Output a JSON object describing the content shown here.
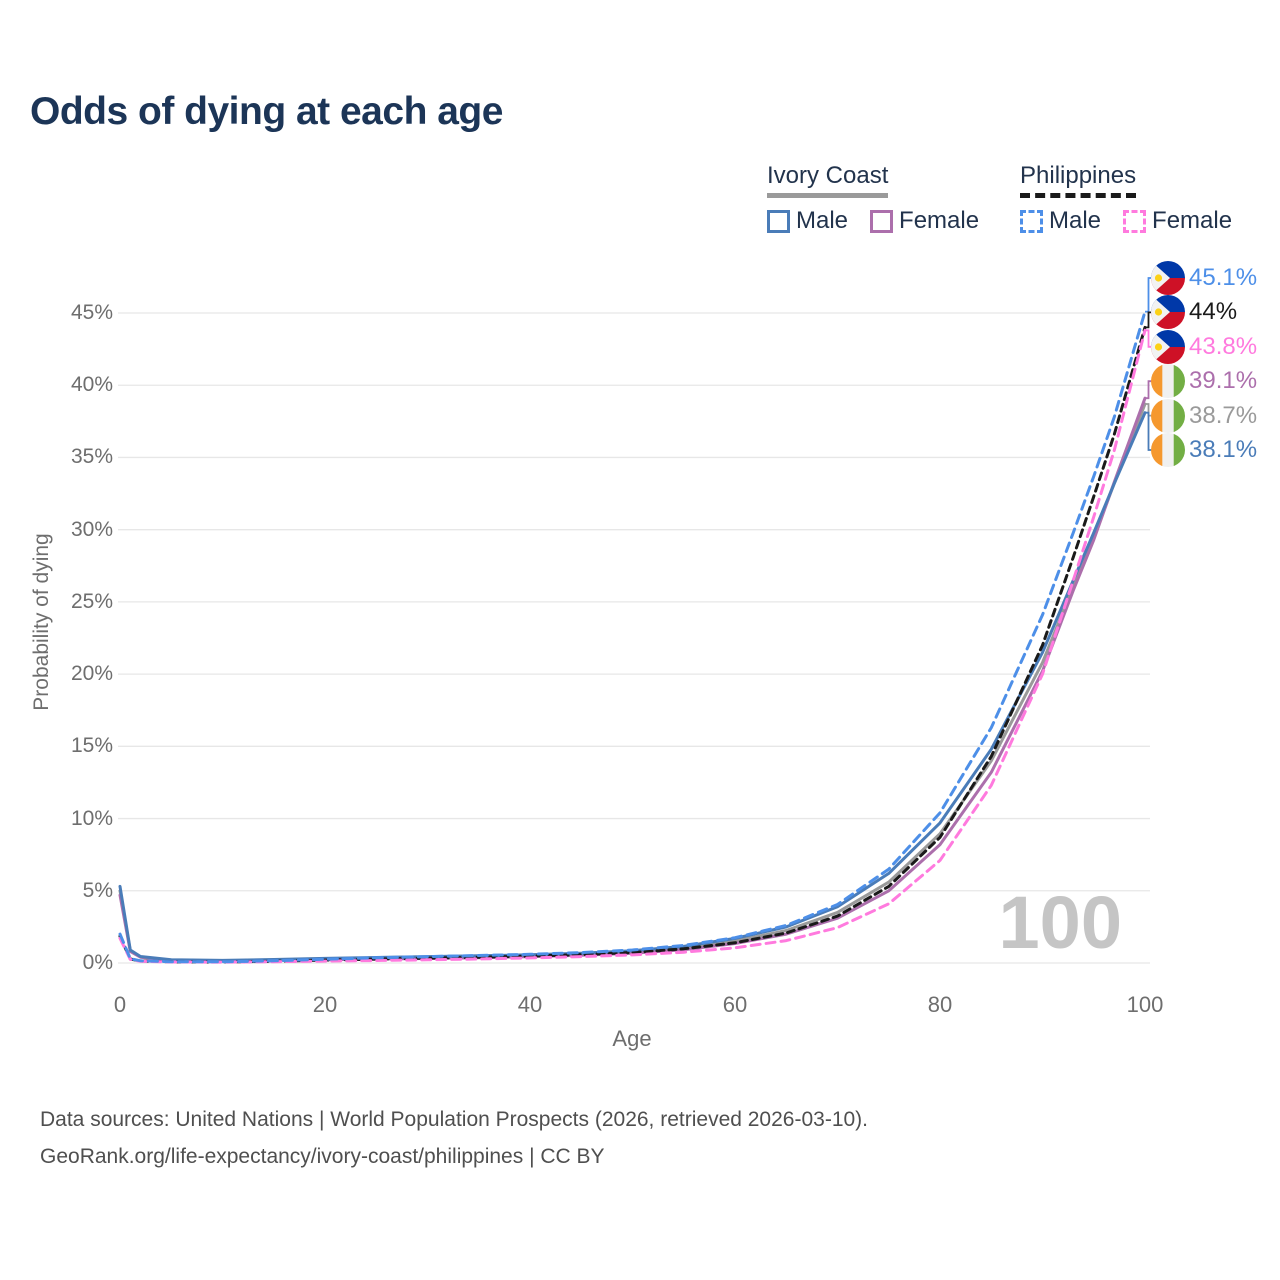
{
  "title": "Odds of dying at each age",
  "watermark": "100",
  "legend": {
    "groups": [
      {
        "name": "Ivory Coast",
        "line_style": "solid",
        "underline_color": "#9A9A9A",
        "items": [
          {
            "label": "Male",
            "color": "#4A7CB8"
          },
          {
            "label": "Female",
            "color": "#AC6FAC"
          }
        ]
      },
      {
        "name": "Philippines",
        "line_style": "dashed",
        "underline_color": "#1A1A1A",
        "items": [
          {
            "label": "Male",
            "color": "#4D8FE8"
          },
          {
            "label": "Female",
            "color": "#FF7ADE"
          }
        ]
      }
    ]
  },
  "chart_data": {
    "type": "line",
    "title": "Odds of dying at each age",
    "xlabel": "Age",
    "ylabel": "Probability of dying",
    "xlim": [
      0,
      100
    ],
    "ylim": [
      0,
      47
    ],
    "grid": "horizontal",
    "x_ticks": [
      {
        "value": 0,
        "label": "0"
      },
      {
        "value": 20,
        "label": "20"
      },
      {
        "value": 40,
        "label": "40"
      },
      {
        "value": 60,
        "label": "60"
      },
      {
        "value": 80,
        "label": "80"
      },
      {
        "value": 100,
        "label": "100"
      }
    ],
    "y_ticks": [
      {
        "value": 0,
        "label": "0%"
      },
      {
        "value": 5,
        "label": "5%"
      },
      {
        "value": 10,
        "label": "10%"
      },
      {
        "value": 15,
        "label": "15%"
      },
      {
        "value": 20,
        "label": "20%"
      },
      {
        "value": 25,
        "label": "25%"
      },
      {
        "value": 30,
        "label": "30%"
      },
      {
        "value": 35,
        "label": "35%"
      },
      {
        "value": 40,
        "label": "40%"
      },
      {
        "value": 45,
        "label": "45%"
      }
    ],
    "x": [
      0,
      1,
      2,
      5,
      10,
      15,
      20,
      25,
      30,
      35,
      40,
      45,
      50,
      55,
      60,
      65,
      70,
      75,
      80,
      85,
      90,
      93,
      95,
      97,
      100
    ],
    "series": [
      {
        "name": "Philippines Male",
        "country": "Philippines",
        "sex": "Male",
        "color": "#4D8FE8",
        "dash": "9 6",
        "flag": "ph",
        "end_label": "45.1%",
        "values": [
          2.0,
          0.3,
          0.15,
          0.09,
          0.08,
          0.15,
          0.26,
          0.36,
          0.44,
          0.52,
          0.6,
          0.72,
          0.9,
          1.22,
          1.75,
          2.6,
          4.05,
          6.5,
          10.4,
          16.3,
          24.1,
          29.8,
          33.7,
          37.8,
          45.1
        ]
      },
      {
        "name": "Philippines Both sexes",
        "country": "Philippines",
        "sex": "Both",
        "color": "#1A1A1A",
        "dash": "7 5",
        "flag": "ph",
        "end_label": "44%",
        "values": [
          1.85,
          0.28,
          0.14,
          0.08,
          0.07,
          0.12,
          0.2,
          0.27,
          0.33,
          0.4,
          0.48,
          0.58,
          0.73,
          0.98,
          1.4,
          2.08,
          3.25,
          5.3,
          8.7,
          14.3,
          22.0,
          28.1,
          32.3,
          36.6,
          44.0
        ]
      },
      {
        "name": "Philippines Female",
        "country": "Philippines",
        "sex": "Female",
        "color": "#FF7ADE",
        "dash": "9 6",
        "flag": "ph",
        "end_label": "43.8%",
        "values": [
          1.7,
          0.25,
          0.12,
          0.07,
          0.06,
          0.09,
          0.13,
          0.17,
          0.22,
          0.28,
          0.35,
          0.44,
          0.56,
          0.75,
          1.05,
          1.55,
          2.45,
          4.1,
          7.1,
          12.3,
          20.0,
          26.5,
          30.9,
          35.5,
          43.8
        ]
      },
      {
        "name": "Ivory Coast Female",
        "country": "Ivory Coast",
        "sex": "Female",
        "color": "#AC6FAC",
        "dash": null,
        "flag": "ci",
        "end_label": "39.1%",
        "values": [
          4.7,
          0.8,
          0.4,
          0.19,
          0.15,
          0.18,
          0.23,
          0.27,
          0.31,
          0.37,
          0.44,
          0.53,
          0.67,
          0.92,
          1.35,
          2.0,
          3.1,
          5.0,
          8.2,
          13.2,
          20.2,
          25.8,
          29.3,
          33.3,
          39.1
        ]
      },
      {
        "name": "Ivory Coast Both sexes",
        "country": "Ivory Coast",
        "sex": "Both",
        "color": "#9A9A9A",
        "dash": null,
        "flag": "ci",
        "end_label": "38.7%",
        "values": [
          5.0,
          0.85,
          0.42,
          0.2,
          0.16,
          0.21,
          0.28,
          0.33,
          0.38,
          0.44,
          0.5,
          0.6,
          0.76,
          1.04,
          1.52,
          2.25,
          3.5,
          5.6,
          8.95,
          14.0,
          20.8,
          26.1,
          29.5,
          33.2,
          38.7
        ]
      },
      {
        "name": "Ivory Coast Male",
        "country": "Ivory Coast",
        "sex": "Male",
        "color": "#4A7CB8",
        "dash": null,
        "flag": "ci",
        "end_label": "38.1%",
        "values": [
          5.3,
          0.9,
          0.45,
          0.22,
          0.18,
          0.24,
          0.32,
          0.38,
          0.44,
          0.5,
          0.57,
          0.68,
          0.85,
          1.15,
          1.7,
          2.5,
          3.9,
          6.2,
          9.7,
          14.8,
          21.5,
          26.5,
          29.8,
          33.2,
          38.1
        ]
      }
    ],
    "flag_colors": {
      "ph": {
        "blue": "#0038A8",
        "red": "#CE1126",
        "white": "#F2F2F2",
        "sun": "#FCD116"
      },
      "ci": {
        "orange": "#F5982E",
        "white": "#F0F0F0",
        "green": "#72AE44"
      }
    }
  },
  "footer": {
    "line1": "Data sources: United Nations | World Population Prospects (2026, retrieved 2026-03-10).",
    "line2": "GeoRank.org/life-expectancy/ivory-coast/philippines | CC BY"
  }
}
